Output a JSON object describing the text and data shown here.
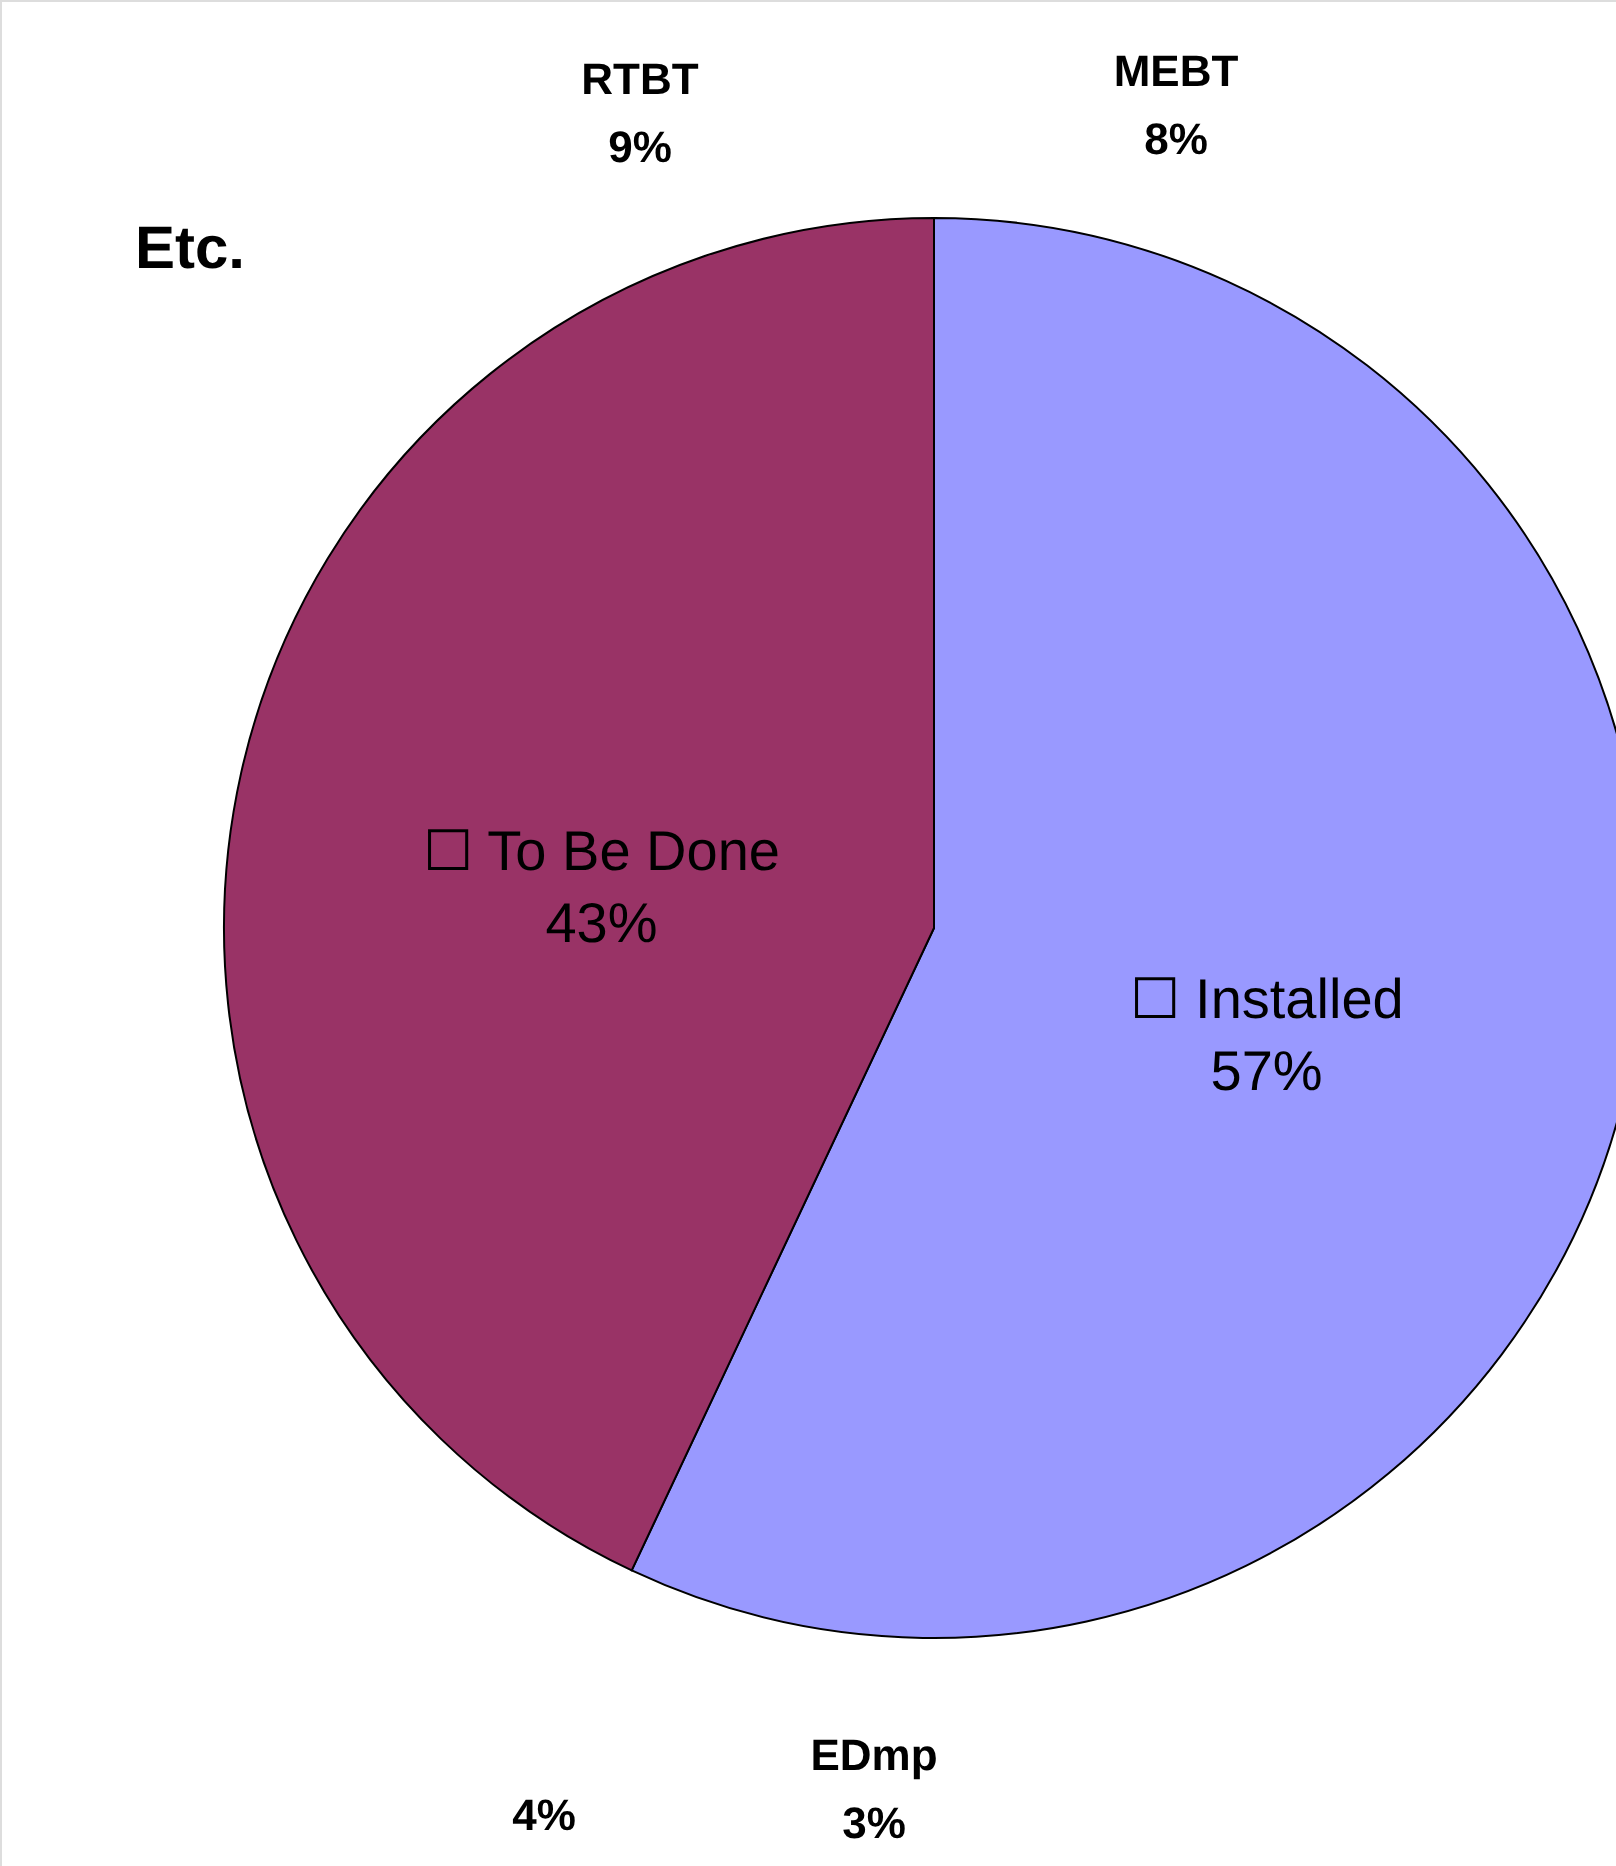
{
  "chart_data": {
    "type": "pie",
    "categories": [
      "☐ Installed",
      "☐ To Be Done"
    ],
    "values": [
      57,
      43
    ],
    "colors": [
      "#9999ff",
      "#993366"
    ],
    "value_labels": [
      "57%",
      "43%"
    ],
    "annotations": [
      "RTBT",
      "9%",
      "MEBT",
      "8%",
      "Etc.",
      "4%",
      "EDmp",
      "3%"
    ]
  }
}
